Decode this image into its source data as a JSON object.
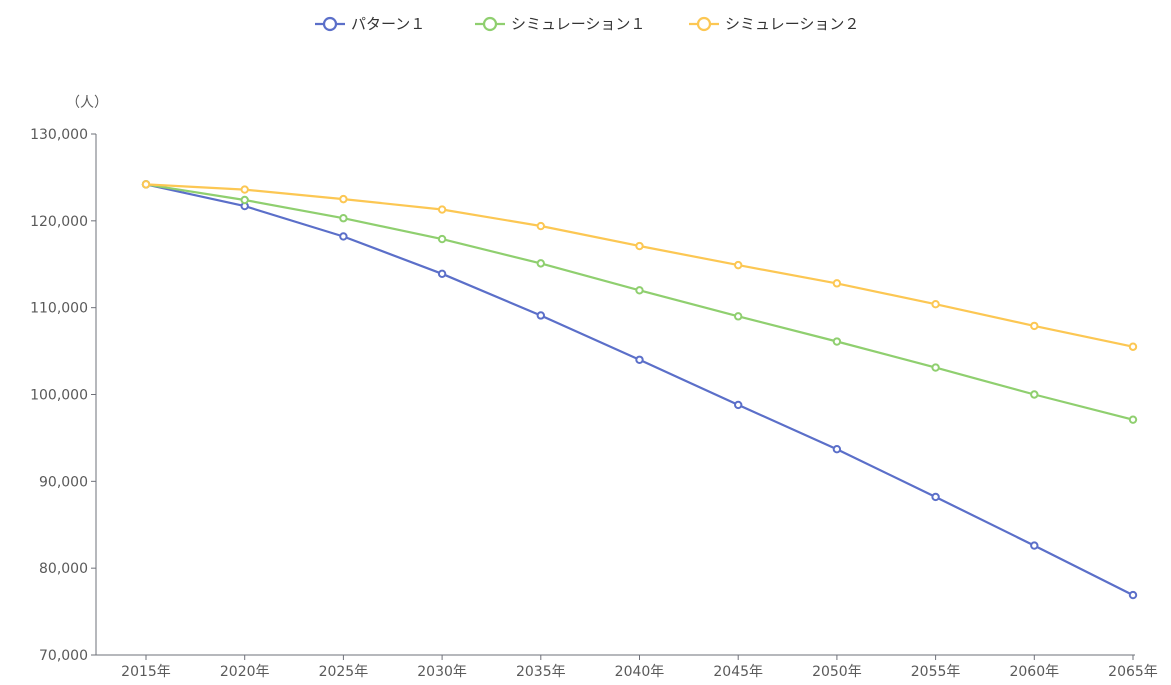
{
  "chart_data": {
    "type": "line",
    "ylabel": "（人）",
    "xlabel": "",
    "categories": [
      "2015年",
      "2020年",
      "2025年",
      "2030年",
      "2035年",
      "2040年",
      "2045年",
      "2050年",
      "2055年",
      "2060年",
      "2065年"
    ],
    "ylim": [
      70000,
      130000
    ],
    "yticks": [
      70000,
      80000,
      90000,
      100000,
      110000,
      120000,
      130000
    ],
    "ytick_labels": [
      "70,000",
      "80,000",
      "90,000",
      "100,000",
      "110,000",
      "120,000",
      "130,000"
    ],
    "grid": false,
    "legend_position": "top-center",
    "series": [
      {
        "name": "パターン１",
        "color": "#5b6fc9",
        "values": [
          124200,
          121700,
          118200,
          113900,
          109100,
          104000,
          98800,
          93700,
          88200,
          82600,
          76900
        ]
      },
      {
        "name": "シミュレーション１",
        "color": "#8fcf6f",
        "values": [
          124200,
          122400,
          120300,
          117900,
          115100,
          112000,
          109000,
          106100,
          103100,
          100000,
          97100
        ]
      },
      {
        "name": "シミュレーション２",
        "color": "#fcc753",
        "values": [
          124200,
          123600,
          122500,
          121300,
          119400,
          117100,
          114900,
          112800,
          110400,
          107900,
          105500
        ]
      }
    ]
  }
}
